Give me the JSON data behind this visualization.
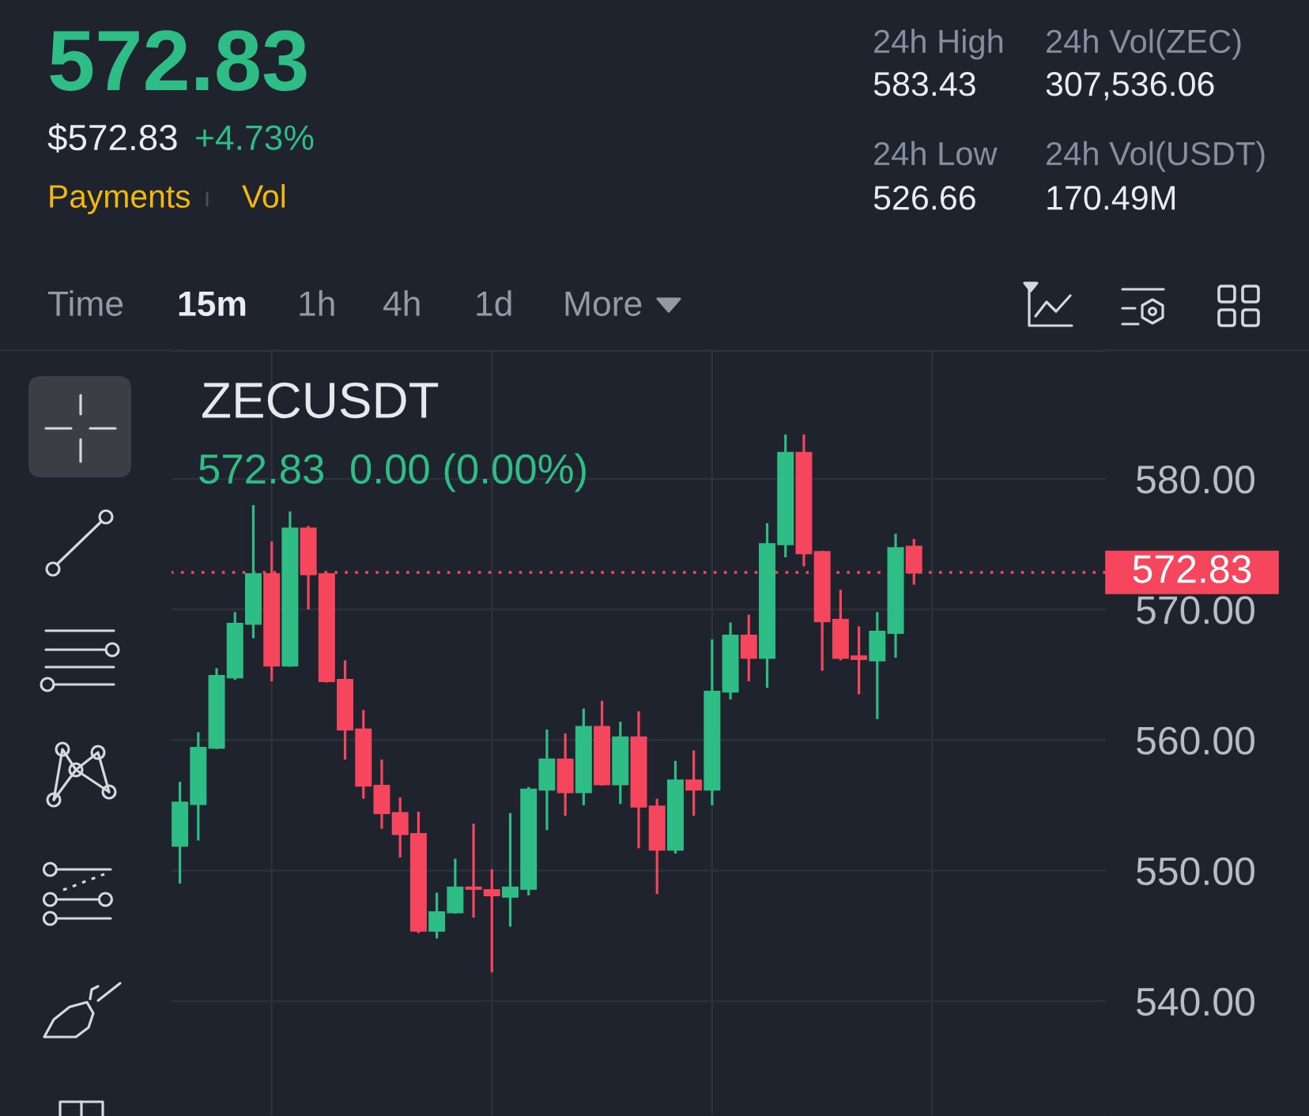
{
  "chart_data": {
    "type": "candlestick",
    "title": "ZECUSDT",
    "categories": [
      null,
      null,
      null,
      null,
      null,
      null,
      null,
      null,
      null,
      null,
      null,
      null,
      null,
      null,
      null,
      null,
      null,
      null,
      null,
      null,
      null,
      null,
      null,
      null,
      null,
      null,
      null,
      null,
      null,
      null,
      null,
      null,
      null,
      null,
      null,
      null,
      null,
      null,
      null,
      null,
      null,
      null,
      null,
      null,
      null,
      null,
      null,
      null,
      null,
      null,
      null
    ],
    "ohlc": [
      [
        551.9,
        556.8,
        549.0,
        555.2
      ],
      [
        555.1,
        560.6,
        552.3,
        559.4
      ],
      [
        559.4,
        565.5,
        559.3,
        564.9
      ],
      [
        564.8,
        569.8,
        564.6,
        568.9
      ],
      [
        568.9,
        578.0,
        567.8,
        572.7
      ],
      [
        572.7,
        575.2,
        564.5,
        565.7
      ],
      [
        565.7,
        577.5,
        565.6,
        576.2
      ],
      [
        576.2,
        576.4,
        570.0,
        572.7
      ],
      [
        572.7,
        572.8,
        564.4,
        564.5
      ],
      [
        564.6,
        566.1,
        558.5,
        560.8
      ],
      [
        560.8,
        562.3,
        555.5,
        556.5
      ],
      [
        556.5,
        558.5,
        553.2,
        554.4
      ],
      [
        554.4,
        555.6,
        551.0,
        552.8
      ],
      [
        552.8,
        554.5,
        545.2,
        545.4
      ],
      [
        545.4,
        548.3,
        544.8,
        546.8
      ],
      [
        546.8,
        550.9,
        546.7,
        548.7
      ],
      [
        548.7,
        553.6,
        546.4,
        548.6
      ],
      [
        548.5,
        550.1,
        542.2,
        548.1
      ],
      [
        548.0,
        554.4,
        545.7,
        548.7
      ],
      [
        548.6,
        556.4,
        548.1,
        556.2
      ],
      [
        556.2,
        560.8,
        553.1,
        558.5
      ],
      [
        558.5,
        560.5,
        554.2,
        556.0
      ],
      [
        556.0,
        562.4,
        555.0,
        561.0
      ],
      [
        561.0,
        563.0,
        556.5,
        556.6
      ],
      [
        556.6,
        561.4,
        555.1,
        560.2
      ],
      [
        560.2,
        562.2,
        551.7,
        554.9
      ],
      [
        554.9,
        555.5,
        548.2,
        551.6
      ],
      [
        551.6,
        558.4,
        551.3,
        556.9
      ],
      [
        556.9,
        559.2,
        554.2,
        556.2
      ],
      [
        556.2,
        567.7,
        555.0,
        563.7
      ],
      [
        563.7,
        569.0,
        563.1,
        568.0
      ],
      [
        568.0,
        569.6,
        564.5,
        566.3
      ],
      [
        566.3,
        576.6,
        564.0,
        575.0
      ],
      [
        575.0,
        583.4,
        574.0,
        582.0
      ],
      [
        582.0,
        583.4,
        573.3,
        574.3
      ],
      [
        574.4,
        574.5,
        565.3,
        569.1
      ],
      [
        569.2,
        571.5,
        566.1,
        566.3
      ],
      [
        566.4,
        568.7,
        563.5,
        566.2
      ],
      [
        566.1,
        569.8,
        561.6,
        568.3
      ],
      [
        568.2,
        575.8,
        566.3,
        574.7
      ],
      [
        574.8,
        575.4,
        571.9,
        572.83
      ],
      null,
      null,
      null,
      null,
      null,
      null,
      null,
      null,
      null,
      null
    ],
    "colors": [
      "#2ebd85",
      "#2ebd85",
      "#2ebd85",
      "#2ebd85",
      "#2ebd85",
      "#f6465d",
      "#2ebd85",
      "#f6465d",
      "#f6465d",
      "#f6465d",
      "#f6465d",
      "#f6465d",
      "#f6465d",
      "#f6465d",
      "#2ebd85",
      "#2ebd85",
      "#f6465d",
      "#f6465d",
      "#2ebd85",
      "#2ebd85",
      "#2ebd85",
      "#f6465d",
      "#2ebd85",
      "#f6465d",
      "#2ebd85",
      "#f6465d",
      "#f6465d",
      "#2ebd85",
      "#f6465d",
      "#2ebd85",
      "#2ebd85",
      "#f6465d",
      "#2ebd85",
      "#2ebd85",
      "#f6465d",
      "#f6465d",
      "#f6465d",
      "#f6465d",
      "#2ebd85",
      "#2ebd85",
      "#f6465d",
      null,
      null,
      null,
      null,
      null,
      null,
      null,
      null,
      null,
      null
    ],
    "ylim": [
      531.2,
      589.8
    ],
    "yticks": [
      {
        "value": 540,
        "label": "540.00"
      },
      {
        "value": 550,
        "label": "550.00"
      },
      {
        "value": 560,
        "label": "560.00"
      },
      {
        "value": 570,
        "label": "570.00"
      },
      {
        "value": 580,
        "label": "580.00"
      }
    ],
    "grid": true,
    "tick_labels": "y",
    "ref_lines": [
      {
        "axis": "y",
        "value": 572.83,
        "label": "572.83",
        "color": "#f6465d",
        "line_style": "dotted"
      }
    ],
    "annotations": [
      "572.83",
      "$572.83",
      "+4.73%",
      "Payments",
      "Vol",
      "24h High",
      "583.43",
      "24h Vol(ZEC)",
      "307,536.06",
      "24h Low",
      "526.66",
      "24h Vol(USDT)",
      "170.49M",
      "Time",
      "15m",
      "1h",
      "4h",
      "1d",
      "More",
      "572.83",
      "0.00 (0.00%)"
    ]
  }
}
